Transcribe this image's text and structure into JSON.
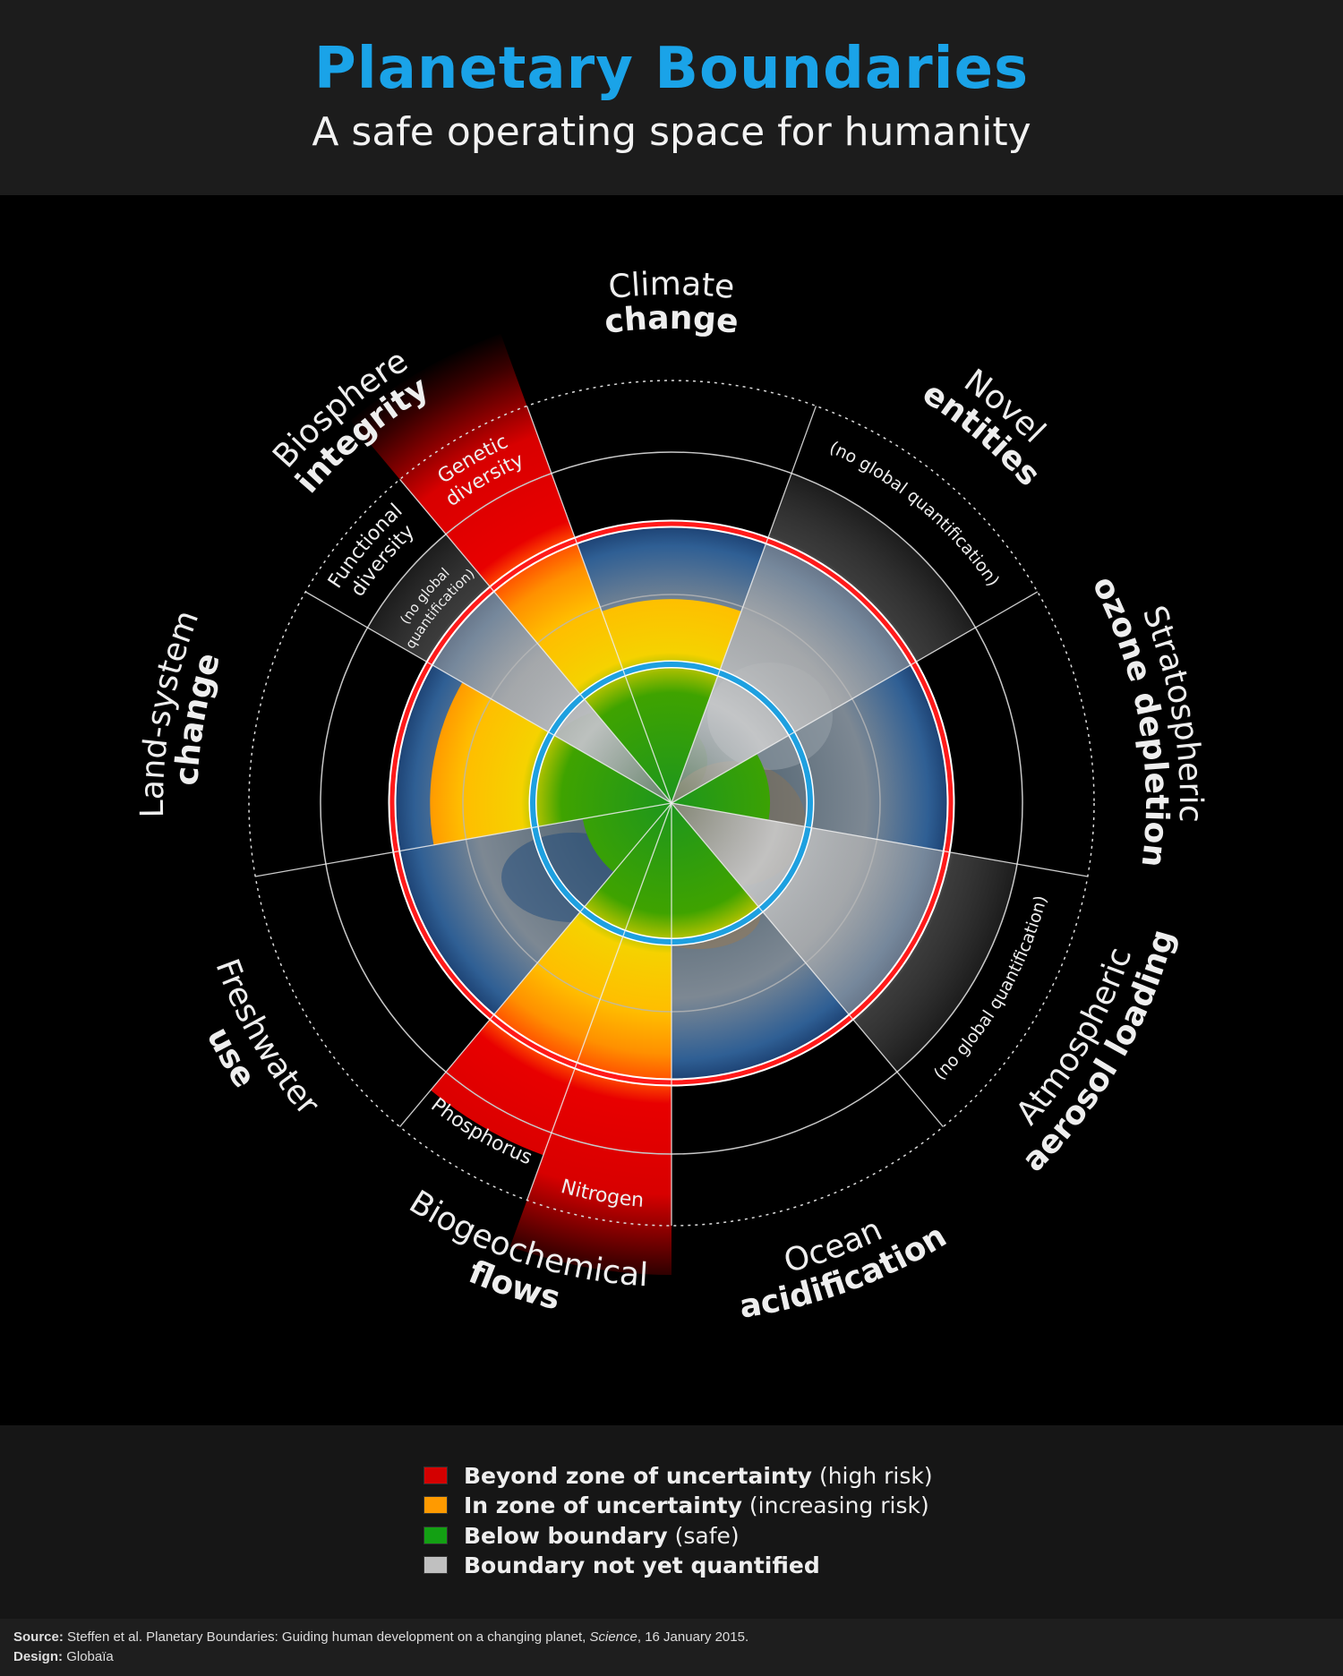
{
  "header": {
    "title": "Planetary Boundaries",
    "subtitle": "A safe operating space for humanity"
  },
  "colors": {
    "title": "#1aa3e8",
    "boundary_circle": "#1ea0e0",
    "high_risk_circle": "#ff1a1a",
    "beyond": "#d40000",
    "uncertainty": "#ff9a00",
    "safe": "#13a013",
    "not_quantified": "#c0c0c0"
  },
  "boundaries": [
    {
      "id": "climate-change",
      "line1": "Climate",
      "line2": "change",
      "status": "uncertainty",
      "value": 1.47
    },
    {
      "id": "novel-entities",
      "line1": "Novel",
      "line2": "entities",
      "status": "not_quantified",
      "note": "(no global quantification)"
    },
    {
      "id": "stratospheric-ozone-depletion",
      "line1": "Stratospheric",
      "line2": "ozone depletion",
      "status": "safe",
      "value": 0.71
    },
    {
      "id": "atmospheric-aerosol-loading",
      "line1": "Atmospheric",
      "line2": "aerosol loading",
      "status": "not_quantified",
      "note": "(no global quantification)"
    },
    {
      "id": "ocean-acidification",
      "line1": "Ocean",
      "line2": "acidification",
      "status": "safe",
      "value": 0.98
    },
    {
      "id": "biogeochemical-flows",
      "line1": "Biogeochemical",
      "line2": "flows",
      "sub": [
        {
          "id": "nitrogen",
          "label": "Nitrogen",
          "status": "beyond",
          "value": 3.4
        },
        {
          "id": "phosphorus",
          "label": "Phosphorus",
          "status": "beyond",
          "value": 2.7
        }
      ]
    },
    {
      "id": "freshwater-use",
      "line1": "Freshwater",
      "line2": "use",
      "status": "safe",
      "value": 0.65
    },
    {
      "id": "land-system-change",
      "line1": "Land-system",
      "line2": "change",
      "status": "uncertainty",
      "value": 1.74
    },
    {
      "id": "biosphere-integrity",
      "line1": "Biosphere",
      "line2": "integrity",
      "sub": [
        {
          "id": "functional-diversity",
          "label1": "Functional",
          "label2": "diversity",
          "status": "not_quantified",
          "note1": "(no global",
          "note2": "quantification)"
        },
        {
          "id": "genetic-diversity",
          "label1": "Genetic",
          "label2": "diversity",
          "status": "beyond",
          "value": 3.6
        }
      ]
    }
  ],
  "legend": [
    {
      "strong": "Beyond zone of uncertainty",
      "light": "(high risk)",
      "color": "#d40000"
    },
    {
      "strong": "In zone of uncertainty",
      "light": "(increasing risk)",
      "color": "#ff9a00"
    },
    {
      "strong": "Below boundary",
      "light": "(safe)",
      "color": "#13a013"
    },
    {
      "strong": "Boundary not yet quantified",
      "light": "",
      "color": "#c0c0c0"
    }
  ],
  "footer": {
    "source_label": "Source:",
    "source_text": "Steffen et al. Planetary Boundaries: Guiding human development on a changing planet, ",
    "source_journal": "Science",
    "source_date": ", 16 January 2015.",
    "design_label": "Design:",
    "design_text": "Globaïa"
  }
}
